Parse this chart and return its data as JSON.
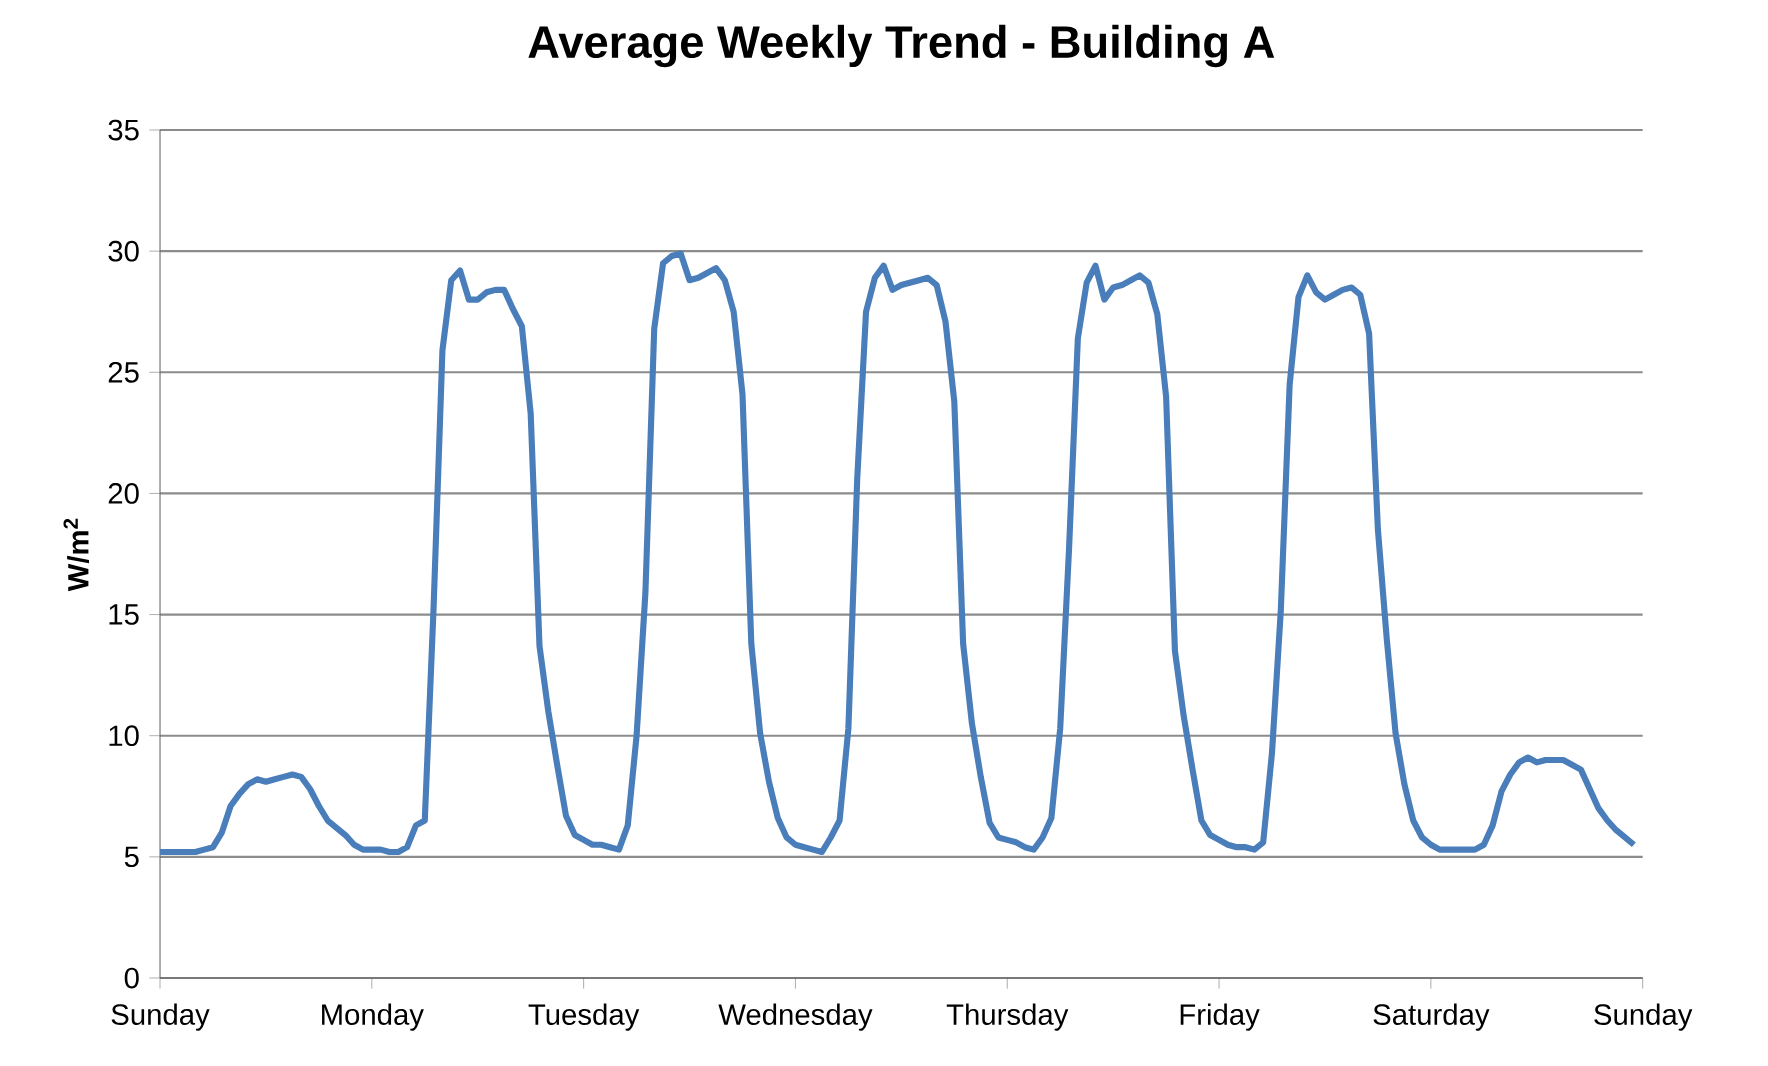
{
  "chart_data": {
    "type": "line",
    "title": "Average Weekly Trend - Building A",
    "ylabel": "W/m$^{2}$",
    "ylim": [
      0,
      35
    ],
    "yticks": [
      0,
      5,
      10,
      15,
      20,
      25,
      30,
      35
    ],
    "categories": [
      "Sunday",
      null,
      null,
      null,
      null,
      null,
      null,
      null,
      null,
      null,
      null,
      null,
      null,
      null,
      null,
      null,
      null,
      null,
      null,
      null,
      null,
      null,
      null,
      null,
      "Monday",
      null,
      null,
      null,
      null,
      null,
      null,
      null,
      null,
      null,
      null,
      null,
      null,
      null,
      null,
      null,
      null,
      null,
      null,
      null,
      null,
      null,
      null,
      null,
      "Tuesday",
      null,
      null,
      null,
      null,
      null,
      null,
      null,
      null,
      null,
      null,
      null,
      null,
      null,
      null,
      null,
      null,
      null,
      null,
      null,
      null,
      null,
      null,
      null,
      "Wednesday",
      null,
      null,
      null,
      null,
      null,
      null,
      null,
      null,
      null,
      null,
      null,
      null,
      null,
      null,
      null,
      null,
      null,
      null,
      null,
      null,
      null,
      null,
      null,
      "Thursday",
      null,
      null,
      null,
      null,
      null,
      null,
      null,
      null,
      null,
      null,
      null,
      null,
      null,
      null,
      null,
      null,
      null,
      null,
      null,
      null,
      null,
      null,
      null,
      "Friday",
      null,
      null,
      null,
      null,
      null,
      null,
      null,
      null,
      null,
      null,
      null,
      null,
      null,
      null,
      null,
      null,
      null,
      null,
      null,
      null,
      null,
      null,
      null,
      "Saturday",
      null,
      null,
      null,
      null,
      null,
      null,
      null,
      null,
      null,
      null,
      null,
      null,
      null,
      null,
      null,
      null,
      null,
      null,
      null,
      null,
      null,
      null,
      null,
      "Sunday"
    ],
    "grid": "y",
    "legend": false,
    "marker": "none",
    "line_style": "solid",
    "series": [
      {
        "color": "#4a7ebb",
        "values": [
          5.2,
          5.2,
          5.2,
          5.2,
          5.2,
          5.3,
          5.4,
          6.0,
          7.1,
          7.6,
          8.0,
          8.2,
          8.1,
          8.2,
          8.3,
          8.4,
          8.3,
          7.8,
          7.1,
          6.5,
          6.2,
          5.9,
          5.5,
          5.3,
          5.3,
          5.3,
          5.2,
          5.2,
          5.4,
          6.3,
          6.5,
          15.3,
          25.9,
          28.8,
          29.2,
          28.0,
          28.0,
          28.3,
          28.4,
          28.4,
          27.6,
          26.9,
          23.3,
          13.7,
          11.0,
          8.8,
          6.7,
          5.9,
          5.7,
          5.5,
          5.5,
          5.4,
          5.3,
          6.3,
          10.0,
          15.9,
          26.8,
          29.5,
          29.8,
          29.9,
          28.8,
          28.9,
          29.1,
          29.3,
          28.8,
          27.5,
          24.1,
          13.8,
          10.1,
          8.1,
          6.6,
          5.8,
          5.5,
          5.4,
          5.3,
          5.2,
          5.8,
          6.5,
          10.3,
          20.6,
          27.5,
          28.9,
          29.4,
          28.4,
          28.6,
          28.7,
          28.8,
          28.9,
          28.6,
          27.1,
          23.8,
          13.8,
          10.5,
          8.3,
          6.4,
          5.8,
          5.7,
          5.6,
          5.4,
          5.3,
          5.8,
          6.6,
          10.3,
          17.7,
          26.4,
          28.7,
          29.4,
          28.0,
          28.5,
          28.6,
          28.8,
          29.0,
          28.7,
          27.4,
          24.0,
          13.5,
          10.8,
          8.6,
          6.5,
          5.9,
          5.7,
          5.5,
          5.4,
          5.4,
          5.3,
          5.6,
          9.3,
          15.2,
          24.5,
          28.1,
          29.0,
          28.3,
          28.0,
          28.2,
          28.4,
          28.5,
          28.2,
          26.6,
          18.5,
          14.0,
          10.1,
          8.0,
          6.5,
          5.8,
          5.5,
          5.3,
          5.3,
          5.3,
          5.3,
          5.3,
          5.5,
          6.3,
          7.7,
          8.4,
          8.9,
          9.1,
          8.9,
          9.0,
          9.0,
          9.0,
          8.8,
          8.6,
          7.8,
          7.0,
          6.5,
          6.1,
          5.8,
          5.5,
          null
        ]
      }
    ]
  }
}
